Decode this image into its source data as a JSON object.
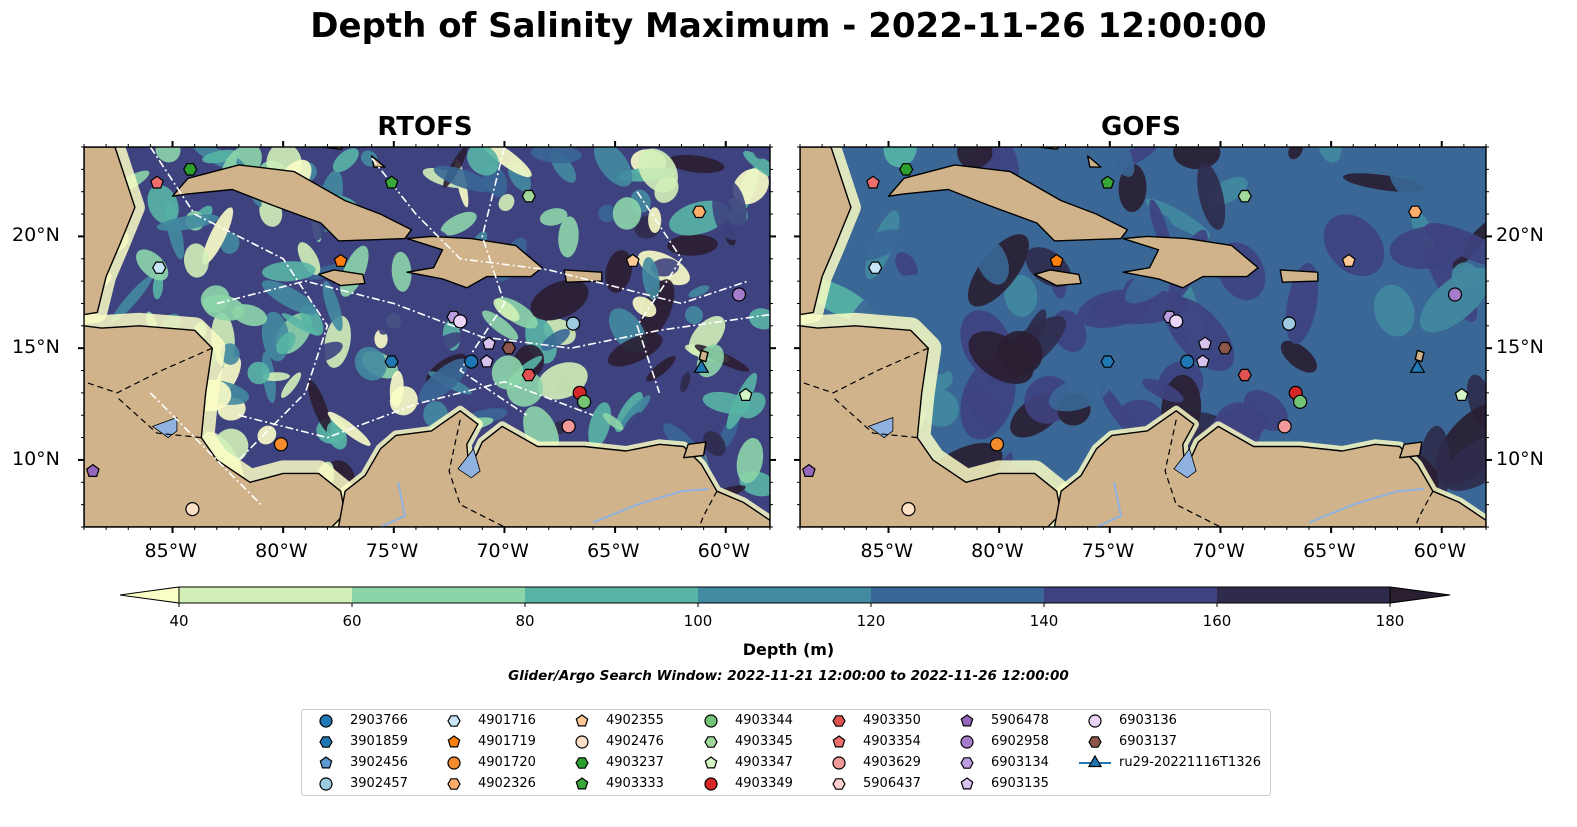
{
  "title": "Depth of Salinity Maximum - 2022-11-26 12:00:00",
  "panels": [
    {
      "title": "RTOFS"
    },
    {
      "title": "GOFS"
    }
  ],
  "axes": {
    "x_labels": [
      "85°W",
      "80°W",
      "75°W",
      "70°W",
      "65°W",
      "60°W"
    ],
    "x_values": [
      -85,
      -80,
      -75,
      -70,
      -65,
      -60
    ],
    "y_labels": [
      "20°N",
      "15°N",
      "10°N"
    ],
    "y_values": [
      20,
      15,
      10
    ],
    "lon_range": [
      -89,
      -58
    ],
    "lat_range": [
      7,
      24
    ]
  },
  "colorbar": {
    "label": "Depth (m)",
    "ticks": [
      "40",
      "60",
      "80",
      "100",
      "120",
      "140",
      "160",
      "180"
    ],
    "colors": [
      "#fbfdc6",
      "#d2efb7",
      "#8cd5a8",
      "#58b5a5",
      "#428aa0",
      "#3a6796",
      "#3e4380",
      "#2f2b4b",
      "#2a1e31"
    ]
  },
  "search_window": "Glider/Argo Search Window: 2022-11-21 12:00:00 to 2022-11-26 12:00:00",
  "land_color": "#d0b38a",
  "legend": [
    {
      "label": "2903766",
      "marker": "circle",
      "color": "#1f77b4"
    },
    {
      "label": "3901859",
      "marker": "hexagon",
      "color": "#1f77b4"
    },
    {
      "label": "3902456",
      "marker": "pentagon",
      "color": "#5b9bd5"
    },
    {
      "label": "3902457",
      "marker": "circle",
      "color": "#9ecae1"
    },
    {
      "label": "4901716",
      "marker": "hexagon",
      "color": "#c6e6f5"
    },
    {
      "label": "4901719",
      "marker": "pentagon",
      "color": "#ff7f0e"
    },
    {
      "label": "4901720",
      "marker": "circle",
      "color": "#f48c2e"
    },
    {
      "label": "4902326",
      "marker": "hexagon",
      "color": "#fdae6b"
    },
    {
      "label": "4902355",
      "marker": "pentagon",
      "color": "#fdc896"
    },
    {
      "label": "4902476",
      "marker": "circle",
      "color": "#fde0c5"
    },
    {
      "label": "4903237",
      "marker": "hexagon",
      "color": "#2ca02c"
    },
    {
      "label": "4903333",
      "marker": "pentagon",
      "color": "#39a839"
    },
    {
      "label": "4903344",
      "marker": "circle",
      "color": "#74c476"
    },
    {
      "label": "4903345",
      "marker": "hexagon",
      "color": "#a1d99b"
    },
    {
      "label": "4903347",
      "marker": "pentagon",
      "color": "#d4f5c5"
    },
    {
      "label": "4903349",
      "marker": "circle",
      "color": "#d62728"
    },
    {
      "label": "4903350",
      "marker": "hexagon",
      "color": "#e05252"
    },
    {
      "label": "4903354",
      "marker": "pentagon",
      "color": "#ef6f6f"
    },
    {
      "label": "4903629",
      "marker": "circle",
      "color": "#f29a9a"
    },
    {
      "label": "5906437",
      "marker": "hexagon",
      "color": "#fcd0d0"
    },
    {
      "label": "5906478",
      "marker": "pentagon",
      "color": "#9467bd"
    },
    {
      "label": "6902958",
      "marker": "circle",
      "color": "#a47ccb"
    },
    {
      "label": "6903134",
      "marker": "hexagon",
      "color": "#bc9ee0"
    },
    {
      "label": "6903135",
      "marker": "pentagon",
      "color": "#d8c2f0"
    },
    {
      "label": "6903136",
      "marker": "circle",
      "color": "#ebd4f7"
    },
    {
      "label": "6903137",
      "marker": "hexagon",
      "color": "#8c564b"
    },
    {
      "label": "ru29-20221116T1326",
      "marker": "triangle",
      "color": "#1f77b4"
    }
  ],
  "floats": [
    {
      "id": "4903354",
      "lon": -85.7,
      "lat": 22.4
    },
    {
      "id": "4903237",
      "lon": -84.2,
      "lat": 23.0
    },
    {
      "id": "4903333",
      "lon": -75.1,
      "lat": 22.4
    },
    {
      "id": "4903345",
      "lon": -68.9,
      "lat": 21.8
    },
    {
      "id": "4902326",
      "lon": -61.2,
      "lat": 21.1
    },
    {
      "id": "4901716",
      "lon": -85.6,
      "lat": 18.6
    },
    {
      "id": "4901719",
      "lon": -77.4,
      "lat": 18.9
    },
    {
      "id": "4902355",
      "lon": -64.2,
      "lat": 18.9
    },
    {
      "id": "6902958",
      "lon": -59.4,
      "lat": 17.4
    },
    {
      "id": "6903134",
      "lon": -72.3,
      "lat": 16.4
    },
    {
      "id": "6903136",
      "lon": -72.0,
      "lat": 16.2
    },
    {
      "id": "3902457",
      "lon": -66.9,
      "lat": 16.1
    },
    {
      "id": "6903135",
      "lon": -70.7,
      "lat": 15.2
    },
    {
      "id": "6903137",
      "lon": -69.8,
      "lat": 15.0
    },
    {
      "id": "3901859",
      "lon": -75.1,
      "lat": 14.4
    },
    {
      "id": "2903766",
      "lon": -71.5,
      "lat": 14.4
    },
    {
      "id": "6903135",
      "lon": -70.8,
      "lat": 14.4
    },
    {
      "id": "4903350",
      "lon": -68.9,
      "lat": 13.8
    },
    {
      "id": "4903349",
      "lon": -66.6,
      "lat": 13.0
    },
    {
      "id": "4903344",
      "lon": -66.4,
      "lat": 12.6
    },
    {
      "id": "4903629",
      "lon": -67.1,
      "lat": 11.5
    },
    {
      "id": "4901720",
      "lon": -80.1,
      "lat": 10.7
    },
    {
      "id": "5906478",
      "lon": -88.6,
      "lat": 9.5
    },
    {
      "id": "4902476",
      "lon": -84.1,
      "lat": 7.8
    },
    {
      "id": "4903347",
      "lon": -59.1,
      "lat": 12.9
    },
    {
      "id": "ru29-20221116T1326",
      "lon": -61.1,
      "lat": 14.1
    }
  ]
}
